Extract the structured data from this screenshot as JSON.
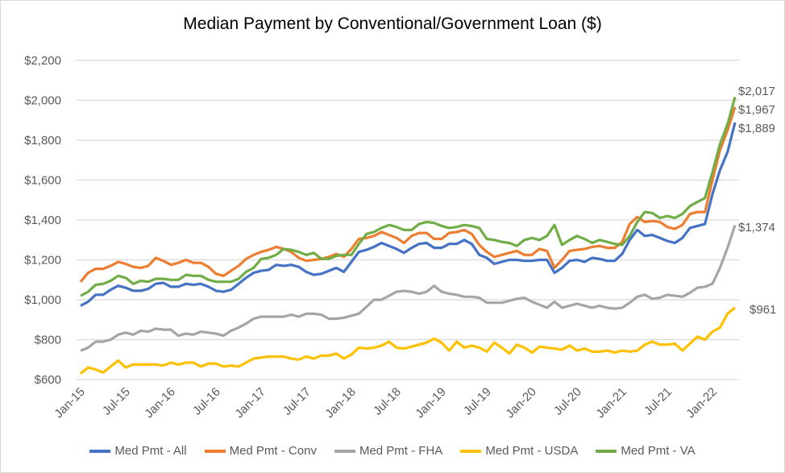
{
  "chart_data": {
    "type": "line",
    "title": "Median Payment by Conventional/Government Loan ($)",
    "ylim": [
      600,
      2200
    ],
    "yticks": [
      "$600",
      "$800",
      "$1,000",
      "$1,200",
      "$1,400",
      "$1,600",
      "$1,800",
      "$2,000",
      "$2,200"
    ],
    "ytick_values": [
      600,
      800,
      1000,
      1200,
      1400,
      1600,
      1800,
      2000,
      2200
    ],
    "xticks": [
      "Jan-15",
      "Jul-15",
      "Jan-16",
      "Jul-16",
      "Jan-17",
      "Jul-17",
      "Jan-18",
      "Jul-18",
      "Jan-19",
      "Jul-19",
      "Jan-20",
      "Jul-20",
      "Jan-21",
      "Jul-21",
      "Jan-22"
    ],
    "x_start": "Jan-15",
    "x_end": "Apr-22",
    "x_frequency": "monthly",
    "grid": "horizontal",
    "legend": "bottom",
    "series": [
      {
        "name": "Med Pmt - All",
        "color": "#4472c4",
        "end_label": "$1,889",
        "values": [
          970,
          990,
          1025,
          1025,
          1050,
          1070,
          1060,
          1045,
          1045,
          1055,
          1080,
          1085,
          1065,
          1065,
          1080,
          1075,
          1080,
          1065,
          1045,
          1040,
          1050,
          1080,
          1110,
          1135,
          1145,
          1150,
          1175,
          1170,
          1175,
          1165,
          1140,
          1125,
          1130,
          1145,
          1160,
          1140,
          1190,
          1240,
          1250,
          1265,
          1285,
          1270,
          1255,
          1235,
          1260,
          1280,
          1285,
          1260,
          1260,
          1280,
          1280,
          1300,
          1280,
          1225,
          1210,
          1180,
          1190,
          1200,
          1200,
          1195,
          1195,
          1200,
          1200,
          1135,
          1160,
          1195,
          1200,
          1190,
          1210,
          1205,
          1195,
          1195,
          1230,
          1300,
          1350,
          1320,
          1325,
          1310,
          1295,
          1285,
          1310,
          1360,
          1370,
          1380,
          1530,
          1650,
          1740,
          1889
        ]
      },
      {
        "name": "Med Pmt - Conv",
        "color": "#ed7d31",
        "end_label": "$1,967",
        "values": [
          1090,
          1135,
          1155,
          1155,
          1170,
          1190,
          1180,
          1165,
          1160,
          1170,
          1210,
          1195,
          1175,
          1185,
          1200,
          1185,
          1185,
          1165,
          1130,
          1120,
          1145,
          1170,
          1205,
          1225,
          1240,
          1250,
          1265,
          1255,
          1240,
          1210,
          1195,
          1200,
          1205,
          1215,
          1230,
          1215,
          1255,
          1305,
          1310,
          1320,
          1340,
          1325,
          1310,
          1285,
          1320,
          1335,
          1335,
          1305,
          1305,
          1335,
          1340,
          1350,
          1330,
          1275,
          1240,
          1215,
          1225,
          1235,
          1245,
          1225,
          1225,
          1255,
          1245,
          1160,
          1200,
          1245,
          1250,
          1255,
          1265,
          1270,
          1260,
          1260,
          1290,
          1380,
          1415,
          1390,
          1395,
          1390,
          1365,
          1355,
          1375,
          1430,
          1440,
          1440,
          1600,
          1750,
          1850,
          1967
        ]
      },
      {
        "name": "Med Pmt - FHA",
        "color": "#a5a5a5",
        "end_label": "$1,374",
        "values": [
          745,
          760,
          790,
          790,
          800,
          825,
          835,
          825,
          845,
          840,
          855,
          850,
          850,
          820,
          830,
          825,
          840,
          835,
          830,
          820,
          845,
          860,
          880,
          905,
          915,
          915,
          915,
          915,
          925,
          915,
          930,
          930,
          925,
          905,
          905,
          910,
          920,
          930,
          965,
          1000,
          1000,
          1020,
          1040,
          1045,
          1040,
          1030,
          1040,
          1070,
          1040,
          1030,
          1025,
          1015,
          1015,
          1010,
          985,
          985,
          985,
          995,
          1005,
          1010,
          990,
          975,
          960,
          990,
          960,
          970,
          980,
          970,
          960,
          970,
          960,
          955,
          960,
          985,
          1015,
          1025,
          1005,
          1010,
          1025,
          1020,
          1015,
          1035,
          1060,
          1065,
          1080,
          1160,
          1260,
          1374
        ]
      },
      {
        "name": "Med Pmt - USDA",
        "color": "#ffc000",
        "end_label": "$961",
        "values": [
          630,
          660,
          650,
          635,
          665,
          695,
          660,
          675,
          675,
          675,
          675,
          670,
          685,
          675,
          685,
          685,
          665,
          680,
          680,
          665,
          670,
          665,
          685,
          705,
          710,
          715,
          715,
          715,
          705,
          700,
          715,
          705,
          720,
          720,
          730,
          705,
          725,
          760,
          755,
          760,
          770,
          790,
          760,
          755,
          765,
          775,
          785,
          805,
          785,
          745,
          790,
          760,
          770,
          760,
          740,
          785,
          760,
          730,
          775,
          760,
          735,
          765,
          760,
          755,
          750,
          770,
          745,
          755,
          740,
          740,
          745,
          735,
          745,
          740,
          745,
          775,
          790,
          775,
          775,
          780,
          745,
          780,
          815,
          800,
          840,
          860,
          930,
          961
        ]
      },
      {
        "name": "Med Pmt - VA",
        "color": "#70ad47",
        "end_label": "$2,017",
        "values": [
          1020,
          1040,
          1075,
          1080,
          1095,
          1120,
          1110,
          1080,
          1095,
          1090,
          1105,
          1105,
          1100,
          1100,
          1125,
          1120,
          1120,
          1100,
          1090,
          1090,
          1090,
          1105,
          1140,
          1160,
          1205,
          1210,
          1225,
          1255,
          1250,
          1240,
          1225,
          1235,
          1205,
          1205,
          1220,
          1225,
          1225,
          1280,
          1330,
          1340,
          1360,
          1375,
          1365,
          1350,
          1350,
          1380,
          1390,
          1385,
          1370,
          1360,
          1365,
          1375,
          1370,
          1360,
          1305,
          1300,
          1290,
          1285,
          1270,
          1300,
          1310,
          1300,
          1320,
          1375,
          1275,
          1300,
          1320,
          1305,
          1285,
          1300,
          1290,
          1280,
          1275,
          1320,
          1390,
          1440,
          1435,
          1410,
          1420,
          1410,
          1430,
          1470,
          1490,
          1510,
          1640,
          1780,
          1880,
          2017
        ]
      }
    ]
  }
}
